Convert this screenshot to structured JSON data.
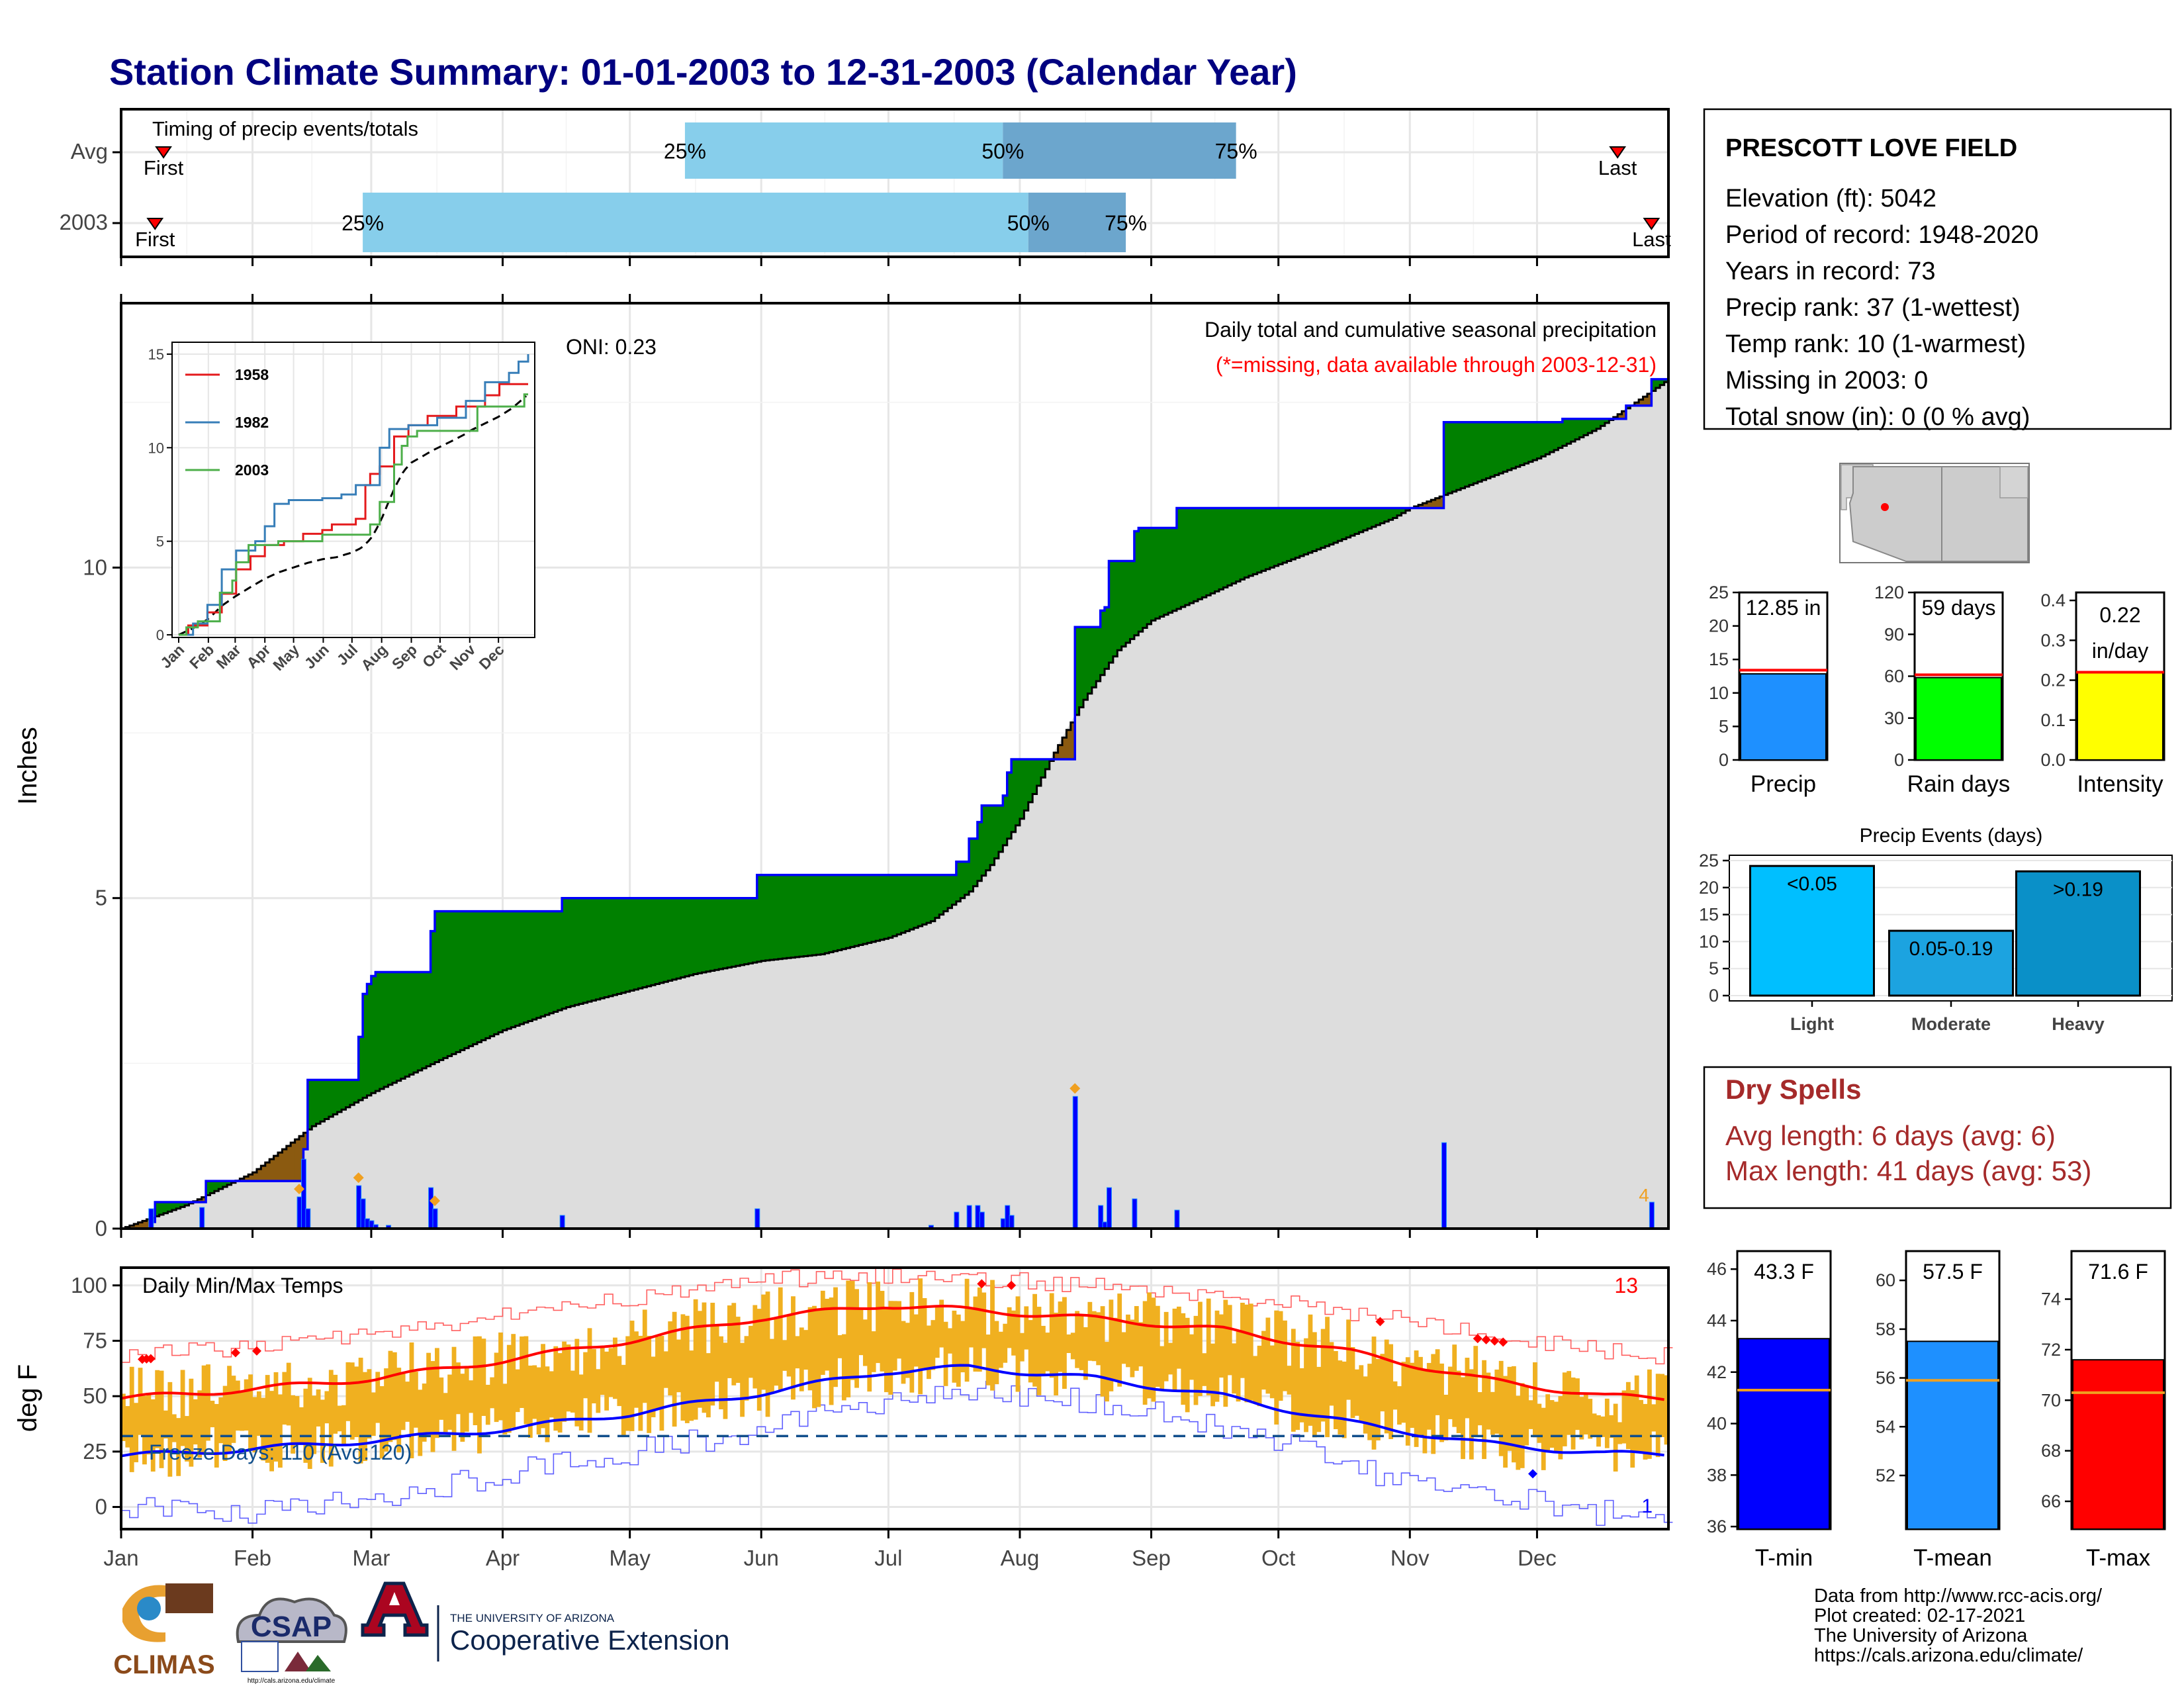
{
  "page": {
    "title": "Station Climate Summary: 01-01-2003 to 12-31-2003 (Calendar Year)",
    "footer_lines": [
      "Data from http://www.rcc-acis.org/",
      "Plot created: 02-17-2021",
      "The University of Arizona",
      "https://cals.arizona.edu/climate/"
    ],
    "logos": {
      "climas": "CLIMAS",
      "csap": "CSAP",
      "csap_url": "http://cals.arizona.edu/climate",
      "ua_small": "THE UNIVERSITY OF ARIZONA",
      "ua_big": "Cooperative Extension"
    },
    "colors": {
      "title": "#000080",
      "precip_blue": "#1e90ff",
      "dry_spell": "#a52a2a",
      "green_fill": "#008000",
      "brown_fill": "#8b5a10",
      "temp_bar": "#f0b020"
    }
  },
  "station": {
    "name": "PRESCOTT LOVE FIELD",
    "lines": [
      "Elevation (ft): 5042",
      "Period of record: 1948-2020",
      "Years in record: 73",
      "Precip rank: 37 (1-wettest)",
      "Temp rank: 10 (1-warmest)",
      "Missing in 2003: 0",
      "Total snow (in): 0 (0 % avg)"
    ]
  },
  "months": [
    "Jan",
    "Feb",
    "Mar",
    "Apr",
    "May",
    "Jun",
    "Jul",
    "Aug",
    "Sep",
    "Oct",
    "Nov",
    "Dec"
  ],
  "chart_data": [
    {
      "id": "timing",
      "type": "bar",
      "label": "Timing of precip events/totals",
      "rows": [
        {
          "name": "Avg",
          "first_day": 10,
          "q25_day": 133,
          "q50_day": 208,
          "q75_day": 263,
          "last_day": 353,
          "first": "First",
          "last": "Last",
          "q25": "25%",
          "q50": "50%",
          "q75": "75%"
        },
        {
          "name": "2003",
          "first_day": 8,
          "q25_day": 57,
          "q50_day": 214,
          "q75_day": 237,
          "last_day": 361,
          "first": "First",
          "last": "Last",
          "q25": "25%",
          "q50": "50%",
          "q75": "75%"
        }
      ]
    },
    {
      "id": "precip",
      "type": "area",
      "ylabel": "Inches",
      "ylim": [
        0,
        14
      ],
      "yticks": [
        0,
        5,
        10
      ],
      "title": "Daily total and cumulative seasonal precipitation",
      "subtitle": "(*=missing, data available through 2003-12-31)",
      "oni": "ONI: 0.23",
      "cum_2003": [
        [
          0,
          0
        ],
        [
          7,
          0.1
        ],
        [
          8,
          0.4
        ],
        [
          19,
          0.4
        ],
        [
          20,
          0.72
        ],
        [
          42,
          0.72
        ],
        [
          43,
          1.2
        ],
        [
          44,
          2.25
        ],
        [
          55,
          2.25
        ],
        [
          56,
          2.9
        ],
        [
          57,
          3.55
        ],
        [
          58,
          3.7
        ],
        [
          59,
          3.82
        ],
        [
          60,
          3.88
        ],
        [
          72,
          3.88
        ],
        [
          73,
          4.5
        ],
        [
          74,
          4.8
        ],
        [
          103,
          4.8
        ],
        [
          104,
          5.0
        ],
        [
          149,
          5.0
        ],
        [
          150,
          5.35
        ],
        [
          191,
          5.35
        ],
        [
          197,
          5.55
        ],
        [
          200,
          5.9
        ],
        [
          202,
          6.15
        ],
        [
          203,
          6.4
        ],
        [
          207,
          6.4
        ],
        [
          208,
          6.55
        ],
        [
          209,
          6.9
        ],
        [
          210,
          7.1
        ],
        [
          217,
          7.1
        ],
        [
          224,
          7.1
        ],
        [
          225,
          9.1
        ],
        [
          230,
          9.1
        ],
        [
          231,
          9.35
        ],
        [
          232,
          9.4
        ],
        [
          233,
          10.1
        ],
        [
          238,
          10.1
        ],
        [
          239,
          10.55
        ],
        [
          240,
          10.6
        ],
        [
          248,
          10.6
        ],
        [
          249,
          10.9
        ],
        [
          277,
          10.9
        ],
        [
          311,
          10.9
        ],
        [
          312,
          12.2
        ],
        [
          340,
          12.25
        ],
        [
          355,
          12.45
        ],
        [
          360,
          12.45
        ],
        [
          361,
          12.85
        ],
        [
          365,
          12.85
        ]
      ],
      "cum_avg": [
        [
          0,
          0
        ],
        [
          15,
          0.35
        ],
        [
          31,
          0.85
        ],
        [
          45,
          1.55
        ],
        [
          59,
          2.05
        ],
        [
          75,
          2.55
        ],
        [
          90,
          3.0
        ],
        [
          105,
          3.35
        ],
        [
          120,
          3.6
        ],
        [
          135,
          3.85
        ],
        [
          151,
          4.05
        ],
        [
          165,
          4.15
        ],
        [
          181,
          4.4
        ],
        [
          191,
          4.65
        ],
        [
          200,
          5.1
        ],
        [
          205,
          5.5
        ],
        [
          212,
          6.2
        ],
        [
          220,
          7.2
        ],
        [
          227,
          8.0
        ],
        [
          235,
          8.75
        ],
        [
          243,
          9.2
        ],
        [
          255,
          9.55
        ],
        [
          265,
          9.85
        ],
        [
          273,
          10.05
        ],
        [
          285,
          10.35
        ],
        [
          300,
          10.75
        ],
        [
          304,
          10.9
        ],
        [
          318,
          11.25
        ],
        [
          334,
          11.65
        ],
        [
          348,
          12.1
        ],
        [
          365,
          12.85
        ]
      ],
      "daily": [
        [
          7,
          0.3
        ],
        [
          19,
          0.32
        ],
        [
          42,
          0.48
        ],
        [
          43,
          1.05
        ],
        [
          44,
          0.3
        ],
        [
          56,
          0.65
        ],
        [
          57,
          0.45
        ],
        [
          58,
          0.15
        ],
        [
          59,
          0.12
        ],
        [
          60,
          0.06
        ],
        [
          63,
          0.05
        ],
        [
          73,
          0.62
        ],
        [
          74,
          0.3
        ],
        [
          104,
          0.2
        ],
        [
          150,
          0.3
        ],
        [
          191,
          0.05
        ],
        [
          197,
          0.25
        ],
        [
          200,
          0.35
        ],
        [
          202,
          0.35
        ],
        [
          203,
          0.25
        ],
        [
          208,
          0.15
        ],
        [
          209,
          0.35
        ],
        [
          210,
          0.2
        ],
        [
          225,
          2.0
        ],
        [
          231,
          0.35
        ],
        [
          232,
          0.1
        ],
        [
          233,
          0.62
        ],
        [
          239,
          0.45
        ],
        [
          249,
          0.28
        ],
        [
          312,
          1.3
        ],
        [
          361,
          0.4
        ]
      ],
      "flags": [
        42,
        56,
        74,
        225
      ],
      "corner_flag": "4"
    },
    {
      "id": "inset",
      "type": "line",
      "ylim": [
        0,
        15
      ],
      "yticks": [
        0,
        5,
        10,
        15
      ],
      "series": [
        {
          "name": "1958",
          "color": "#e41a1c",
          "points": [
            [
              0,
              0
            ],
            [
              10,
              0.5
            ],
            [
              30,
              1.2
            ],
            [
              45,
              2.2
            ],
            [
              60,
              3.5
            ],
            [
              75,
              4.2
            ],
            [
              90,
              4.8
            ],
            [
              110,
              5.0
            ],
            [
              130,
              5.4
            ],
            [
              150,
              5.6
            ],
            [
              160,
              5.9
            ],
            [
              185,
              6.2
            ],
            [
              195,
              8.0
            ],
            [
              200,
              8.6
            ],
            [
              210,
              9.0
            ],
            [
              225,
              10.6
            ],
            [
              240,
              11.2
            ],
            [
              260,
              11.7
            ],
            [
              290,
              12.2
            ],
            [
              320,
              12.8
            ],
            [
              335,
              13.4
            ],
            [
              365,
              13.4
            ]
          ]
        },
        {
          "name": "1982",
          "color": "#377eb8",
          "points": [
            [
              0,
              0
            ],
            [
              15,
              0.6
            ],
            [
              30,
              1.6
            ],
            [
              45,
              3.5
            ],
            [
              60,
              4.5
            ],
            [
              80,
              5.0
            ],
            [
              90,
              5.8
            ],
            [
              100,
              7.0
            ],
            [
              115,
              7.2
            ],
            [
              150,
              7.3
            ],
            [
              170,
              7.5
            ],
            [
              185,
              8.0
            ],
            [
              210,
              10.0
            ],
            [
              220,
              11.0
            ],
            [
              240,
              11.2
            ],
            [
              270,
              11.6
            ],
            [
              300,
              12.5
            ],
            [
              320,
              13.5
            ],
            [
              340,
              13.5
            ],
            [
              345,
              14.0
            ],
            [
              355,
              14.6
            ],
            [
              365,
              15.0
            ]
          ]
        },
        {
          "name": "2003",
          "color": "#4daf4a",
          "points": [
            [
              0,
              0
            ],
            [
              8,
              0.4
            ],
            [
              20,
              0.72
            ],
            [
              43,
              2.25
            ],
            [
              56,
              2.9
            ],
            [
              60,
              3.88
            ],
            [
              73,
              4.8
            ],
            [
              104,
              5.0
            ],
            [
              150,
              5.35
            ],
            [
              200,
              5.9
            ],
            [
              210,
              7.1
            ],
            [
              225,
              9.1
            ],
            [
              233,
              10.1
            ],
            [
              239,
              10.6
            ],
            [
              249,
              10.9
            ],
            [
              311,
              10.9
            ],
            [
              312,
              12.2
            ],
            [
              361,
              12.85
            ],
            [
              365,
              12.85
            ]
          ]
        }
      ]
    },
    {
      "id": "temps",
      "type": "line",
      "ylabel": "deg F",
      "ylim": [
        -10,
        108
      ],
      "yticks": [
        0,
        25,
        50,
        75,
        100
      ],
      "label": "Daily Min/Max Temps",
      "freeze_label": "Freeze Days: 110 (Avg:120)",
      "freeze_line": 32,
      "count_hot": "13",
      "count_cold": "1",
      "max_rec": [
        [
          0,
          68
        ],
        [
          30,
          72
        ],
        [
          60,
          78
        ],
        [
          90,
          86
        ],
        [
          120,
          94
        ],
        [
          150,
          103
        ],
        [
          180,
          104
        ],
        [
          200,
          103
        ],
        [
          230,
          100
        ],
        [
          260,
          96
        ],
        [
          290,
          88
        ],
        [
          320,
          78
        ],
        [
          350,
          70
        ],
        [
          365,
          68
        ]
      ],
      "max_avg": [
        [
          0,
          49
        ],
        [
          30,
          53
        ],
        [
          60,
          58
        ],
        [
          90,
          66
        ],
        [
          120,
          75
        ],
        [
          150,
          85
        ],
        [
          180,
          91
        ],
        [
          200,
          89
        ],
        [
          230,
          85
        ],
        [
          260,
          80
        ],
        [
          290,
          70
        ],
        [
          320,
          58
        ],
        [
          350,
          50
        ],
        [
          365,
          49
        ]
      ],
      "min_avg": [
        [
          0,
          23
        ],
        [
          30,
          26
        ],
        [
          60,
          30
        ],
        [
          90,
          35
        ],
        [
          120,
          42
        ],
        [
          150,
          51
        ],
        [
          180,
          61
        ],
        [
          200,
          63
        ],
        [
          230,
          58
        ],
        [
          260,
          50
        ],
        [
          290,
          38
        ],
        [
          320,
          29
        ],
        [
          350,
          24
        ],
        [
          365,
          24
        ]
      ],
      "min_rec": [
        [
          0,
          0
        ],
        [
          30,
          -4
        ],
        [
          60,
          5
        ],
        [
          90,
          15
        ],
        [
          120,
          25
        ],
        [
          150,
          35
        ],
        [
          180,
          47
        ],
        [
          200,
          52
        ],
        [
          230,
          48
        ],
        [
          260,
          37
        ],
        [
          290,
          18
        ],
        [
          320,
          6
        ],
        [
          350,
          -3
        ],
        [
          365,
          -6
        ]
      ]
    },
    {
      "id": "gauges",
      "type": "bar",
      "items": [
        {
          "label": "Precip",
          "value_text": "12.85 in",
          "value": 12.85,
          "avg": 13.4,
          "ymax": 25,
          "ticks": [
            0,
            5,
            10,
            15,
            20,
            25
          ],
          "color": "#1e90ff"
        },
        {
          "label": "Rain days",
          "value_text": "59 days",
          "value": 59,
          "avg": 61,
          "ymax": 120,
          "ticks": [
            0,
            30,
            60,
            90,
            120
          ],
          "color": "#00ff00"
        },
        {
          "label": "Intensity",
          "value_text_1": "0.22",
          "value_text_2": "in/day",
          "value": 0.22,
          "avg": 0.22,
          "ymax": 0.42,
          "ticks": [
            0.0,
            0.1,
            0.2,
            0.3,
            0.4
          ],
          "color": "#ffff00"
        }
      ]
    },
    {
      "id": "events",
      "type": "bar",
      "title": "Precip Events (days)",
      "ymax": 25,
      "ticks": [
        0,
        5,
        10,
        15,
        20,
        25
      ],
      "categories": [
        "Light",
        "Moderate",
        "Heavy"
      ],
      "bar_labels": [
        "<0.05",
        "0.05-0.19",
        ">0.19"
      ],
      "values": [
        24,
        12,
        23
      ],
      "colors": [
        "#00bfff",
        "#1ca3e0",
        "#0a90c8"
      ]
    },
    {
      "id": "temp_gauges",
      "type": "bar",
      "items": [
        {
          "label": "T-min",
          "value_text": "43.3 F",
          "value": 43.3,
          "avg": 41.3,
          "ymin": 35.9,
          "ymax": 46.7,
          "ticks": [
            36,
            38,
            40,
            42,
            44,
            46
          ],
          "color": "#0000ff"
        },
        {
          "label": "T-mean",
          "value_text": "57.5 F",
          "value": 57.5,
          "avg": 55.9,
          "ymin": 49.8,
          "ymax": 61.2,
          "ticks": [
            52,
            54,
            56,
            58,
            60
          ],
          "color": "#1e90ff"
        },
        {
          "label": "T-max",
          "value_text": "71.6 F",
          "value": 71.6,
          "avg": 70.3,
          "ymin": 64.9,
          "ymax": 75.9,
          "ticks": [
            66,
            68,
            70,
            72,
            74
          ],
          "color": "#ff0000"
        }
      ]
    }
  ],
  "dry_spells": {
    "title": "Dry Spells",
    "line1": "Avg length: 6 days (avg: 6)",
    "line2": "Max length: 41 days (avg: 53)"
  }
}
